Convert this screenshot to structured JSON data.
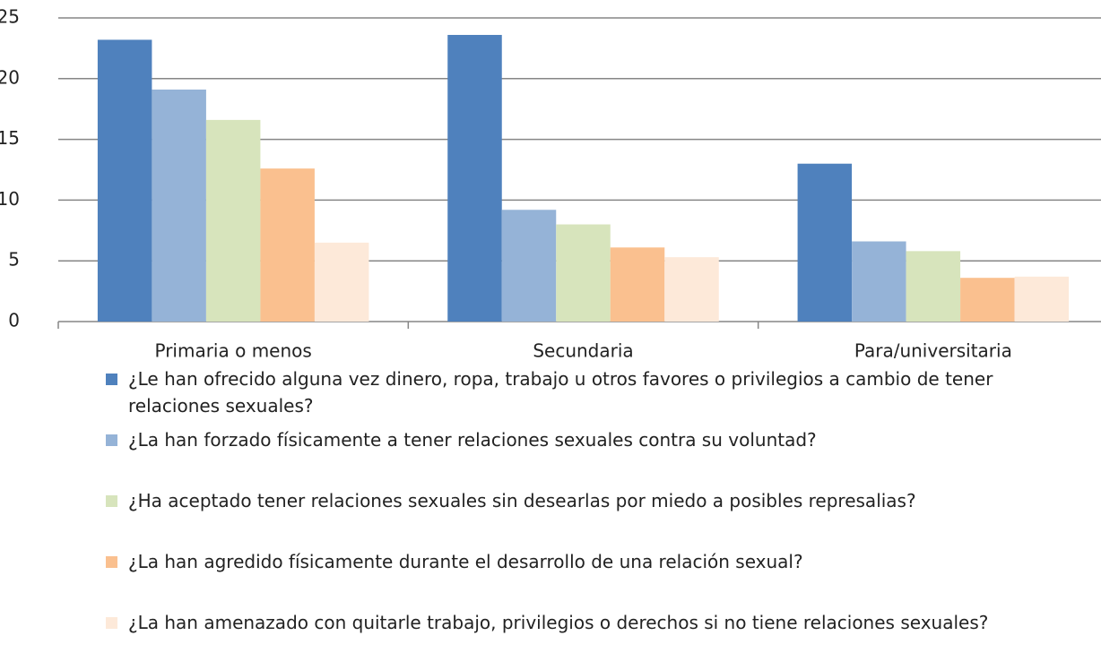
{
  "chart_data": {
    "type": "bar",
    "categories": [
      "Primaria o menos",
      "Secundaria",
      "Para/universitaria"
    ],
    "series": [
      {
        "name": "¿Le han ofrecido alguna vez dinero, ropa, trabajo u otros favores o privilegios a cambio de tener relaciones sexuales?",
        "color": "#4f81bd",
        "values": [
          23.2,
          23.6,
          13.0
        ]
      },
      {
        "name": "¿La han forzado físicamente a tener relaciones sexuales contra su voluntad?",
        "color": "#95b3d7",
        "values": [
          19.1,
          9.2,
          6.6
        ]
      },
      {
        "name": "¿Ha aceptado tener relaciones sexuales sin desearlas por miedo a posibles represalias?",
        "color": "#d7e4bc",
        "values": [
          16.6,
          8.0,
          5.8
        ]
      },
      {
        "name": "¿La han agredido físicamente durante el desarrollo de una relación sexual?",
        "color": "#fac08f",
        "values": [
          12.6,
          6.1,
          3.6
        ]
      },
      {
        "name": "¿La han amenazado con quitarle trabajo, privilegios o derechos si no tiene relaciones sexuales?",
        "color": "#fde9d9",
        "values": [
          6.5,
          5.3,
          3.7
        ]
      }
    ],
    "ylim": [
      0,
      25
    ],
    "yticks": [
      0,
      5,
      10,
      15,
      20,
      25
    ],
    "grid": true,
    "legend": "bottom"
  }
}
